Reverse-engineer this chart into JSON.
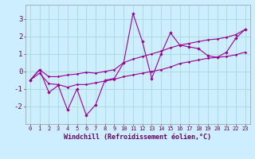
{
  "x": [
    0,
    1,
    2,
    3,
    4,
    5,
    6,
    7,
    8,
    9,
    10,
    11,
    12,
    13,
    14,
    15,
    16,
    17,
    18,
    19,
    20,
    21,
    22,
    23
  ],
  "y_main": [
    -0.5,
    0.1,
    -1.2,
    -0.8,
    -2.2,
    -1.0,
    -2.5,
    -1.9,
    -0.5,
    -0.4,
    0.5,
    3.3,
    1.7,
    -0.4,
    1.0,
    2.2,
    1.5,
    1.4,
    1.3,
    0.9,
    0.8,
    1.1,
    1.9,
    2.4
  ],
  "y_upper": [
    -0.5,
    0.1,
    -0.3,
    -0.3,
    -0.2,
    -0.15,
    -0.05,
    -0.1,
    0.0,
    0.1,
    0.5,
    0.7,
    0.85,
    1.0,
    1.15,
    1.35,
    1.5,
    1.6,
    1.7,
    1.8,
    1.85,
    1.95,
    2.1,
    2.4
  ],
  "y_lower": [
    -0.5,
    -0.1,
    -0.7,
    -0.75,
    -0.9,
    -0.75,
    -0.75,
    -0.65,
    -0.55,
    -0.45,
    -0.3,
    -0.2,
    -0.1,
    0.0,
    0.1,
    0.25,
    0.45,
    0.55,
    0.65,
    0.75,
    0.8,
    0.85,
    0.95,
    1.1
  ],
  "line_color": "#990099",
  "bg_color": "#cceeff",
  "grid_color": "#aadddd",
  "xlabel": "Windchill (Refroidissement éolien,°C)",
  "ylabel_ticks": [
    -2,
    -1,
    0,
    1,
    2,
    3
  ],
  "xlim": [
    -0.5,
    23.5
  ],
  "ylim": [
    -3.0,
    3.8
  ]
}
